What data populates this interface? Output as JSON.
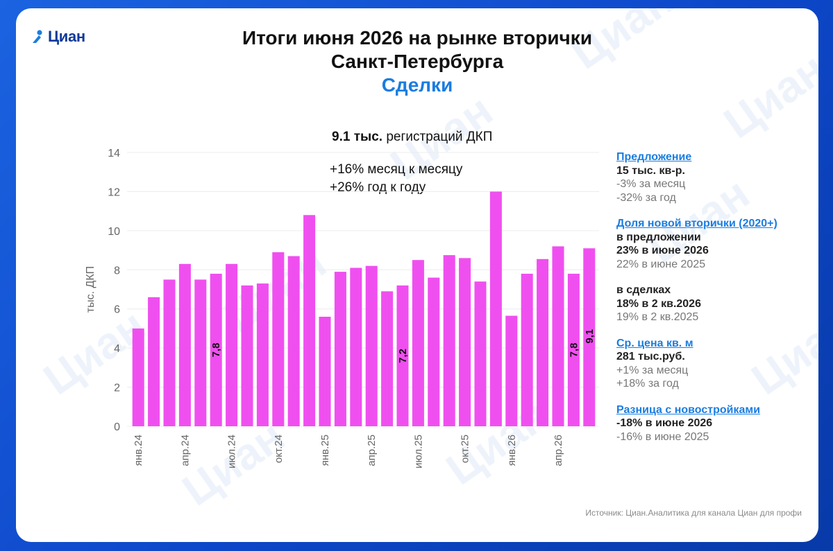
{
  "brand": {
    "logo_text": "Циан",
    "watermark_text": "Циан",
    "accent": "#1a7de0",
    "bar_color": "#f04ff0"
  },
  "header": {
    "title_line1": "Итоги июня 2026 на рынке вторички",
    "title_line2": "Санкт-Петербурга",
    "subtitle": "Сделки"
  },
  "highlight": {
    "value_bold": "9.1 тыс.",
    "value_rest": " регистраций ДКП",
    "mom": "+16% месяц к месяцу",
    "yoy": "+26% год к году"
  },
  "sidebar": {
    "offer_head": "Предложение",
    "offer_value": "15 тыс. кв-р.",
    "offer_mom": "-3% за месяц",
    "offer_yoy": "-32% за год",
    "newshare_head": "Доля новой вторички (2020+)",
    "newshare_sub1": "в предложении",
    "newshare_val1": "23% в июне 2026",
    "newshare_prev1": "22% в июне 2025",
    "newshare_sub2": "в сделках",
    "newshare_val2": "18% в 2 кв.2026",
    "newshare_prev2": "19% в 2 кв.2025",
    "price_head": "Ср. цена кв. м",
    "price_value": "281 тыс.руб.",
    "price_mom": "+1% за месяц",
    "price_yoy": "+18% за год",
    "diff_head": "Разница с новостройками",
    "diff_value": "-18% в июне 2026",
    "diff_prev": "-16% в июне  2025"
  },
  "source": "Источник: Циан.Аналитика для канала Циан для профи",
  "chart_data": {
    "type": "bar",
    "ylabel": "тыс. ДКП",
    "ylim": [
      0,
      14
    ],
    "yticks": [
      0,
      2,
      4,
      6,
      8,
      10,
      12,
      14
    ],
    "grid": true,
    "categories": [
      "янв.24",
      "фев.24",
      "мар.24",
      "апр.24",
      "май.24",
      "июн.24",
      "июл.24",
      "авг.24",
      "сен.24",
      "окт.24",
      "ноя.24",
      "дек.24",
      "янв.25",
      "фев.25",
      "мар.25",
      "апр.25",
      "май.25",
      "июн.25",
      "июл.25",
      "авг.25",
      "сен.25",
      "окт.25",
      "ноя.25",
      "дек.25",
      "янв.26",
      "фев.26",
      "мар.26",
      "апр.26",
      "май.26",
      "июн.26"
    ],
    "tick_labels": [
      "янв.24",
      "",
      "",
      "апр.24",
      "",
      "",
      "июл.24",
      "",
      "",
      "окт.24",
      "",
      "",
      "янв.25",
      "",
      "",
      "апр.25",
      "",
      "",
      "июл.25",
      "",
      "",
      "окт.25",
      "",
      "",
      "янв.26",
      "",
      "",
      "апр.26",
      "",
      ""
    ],
    "values": [
      5.0,
      6.6,
      7.5,
      8.3,
      7.5,
      7.8,
      8.3,
      7.2,
      7.3,
      8.9,
      8.7,
      10.8,
      5.6,
      7.9,
      8.1,
      8.2,
      6.9,
      7.2,
      8.5,
      7.6,
      8.75,
      8.6,
      7.4,
      12.0,
      5.65,
      7.8,
      8.55,
      9.2,
      7.8,
      9.1
    ],
    "data_labels": [
      {
        "index": 5,
        "text": "7,8"
      },
      {
        "index": 17,
        "text": "7,2"
      },
      {
        "index": 28,
        "text": "7,8"
      },
      {
        "index": 29,
        "text": "9,1"
      }
    ]
  }
}
